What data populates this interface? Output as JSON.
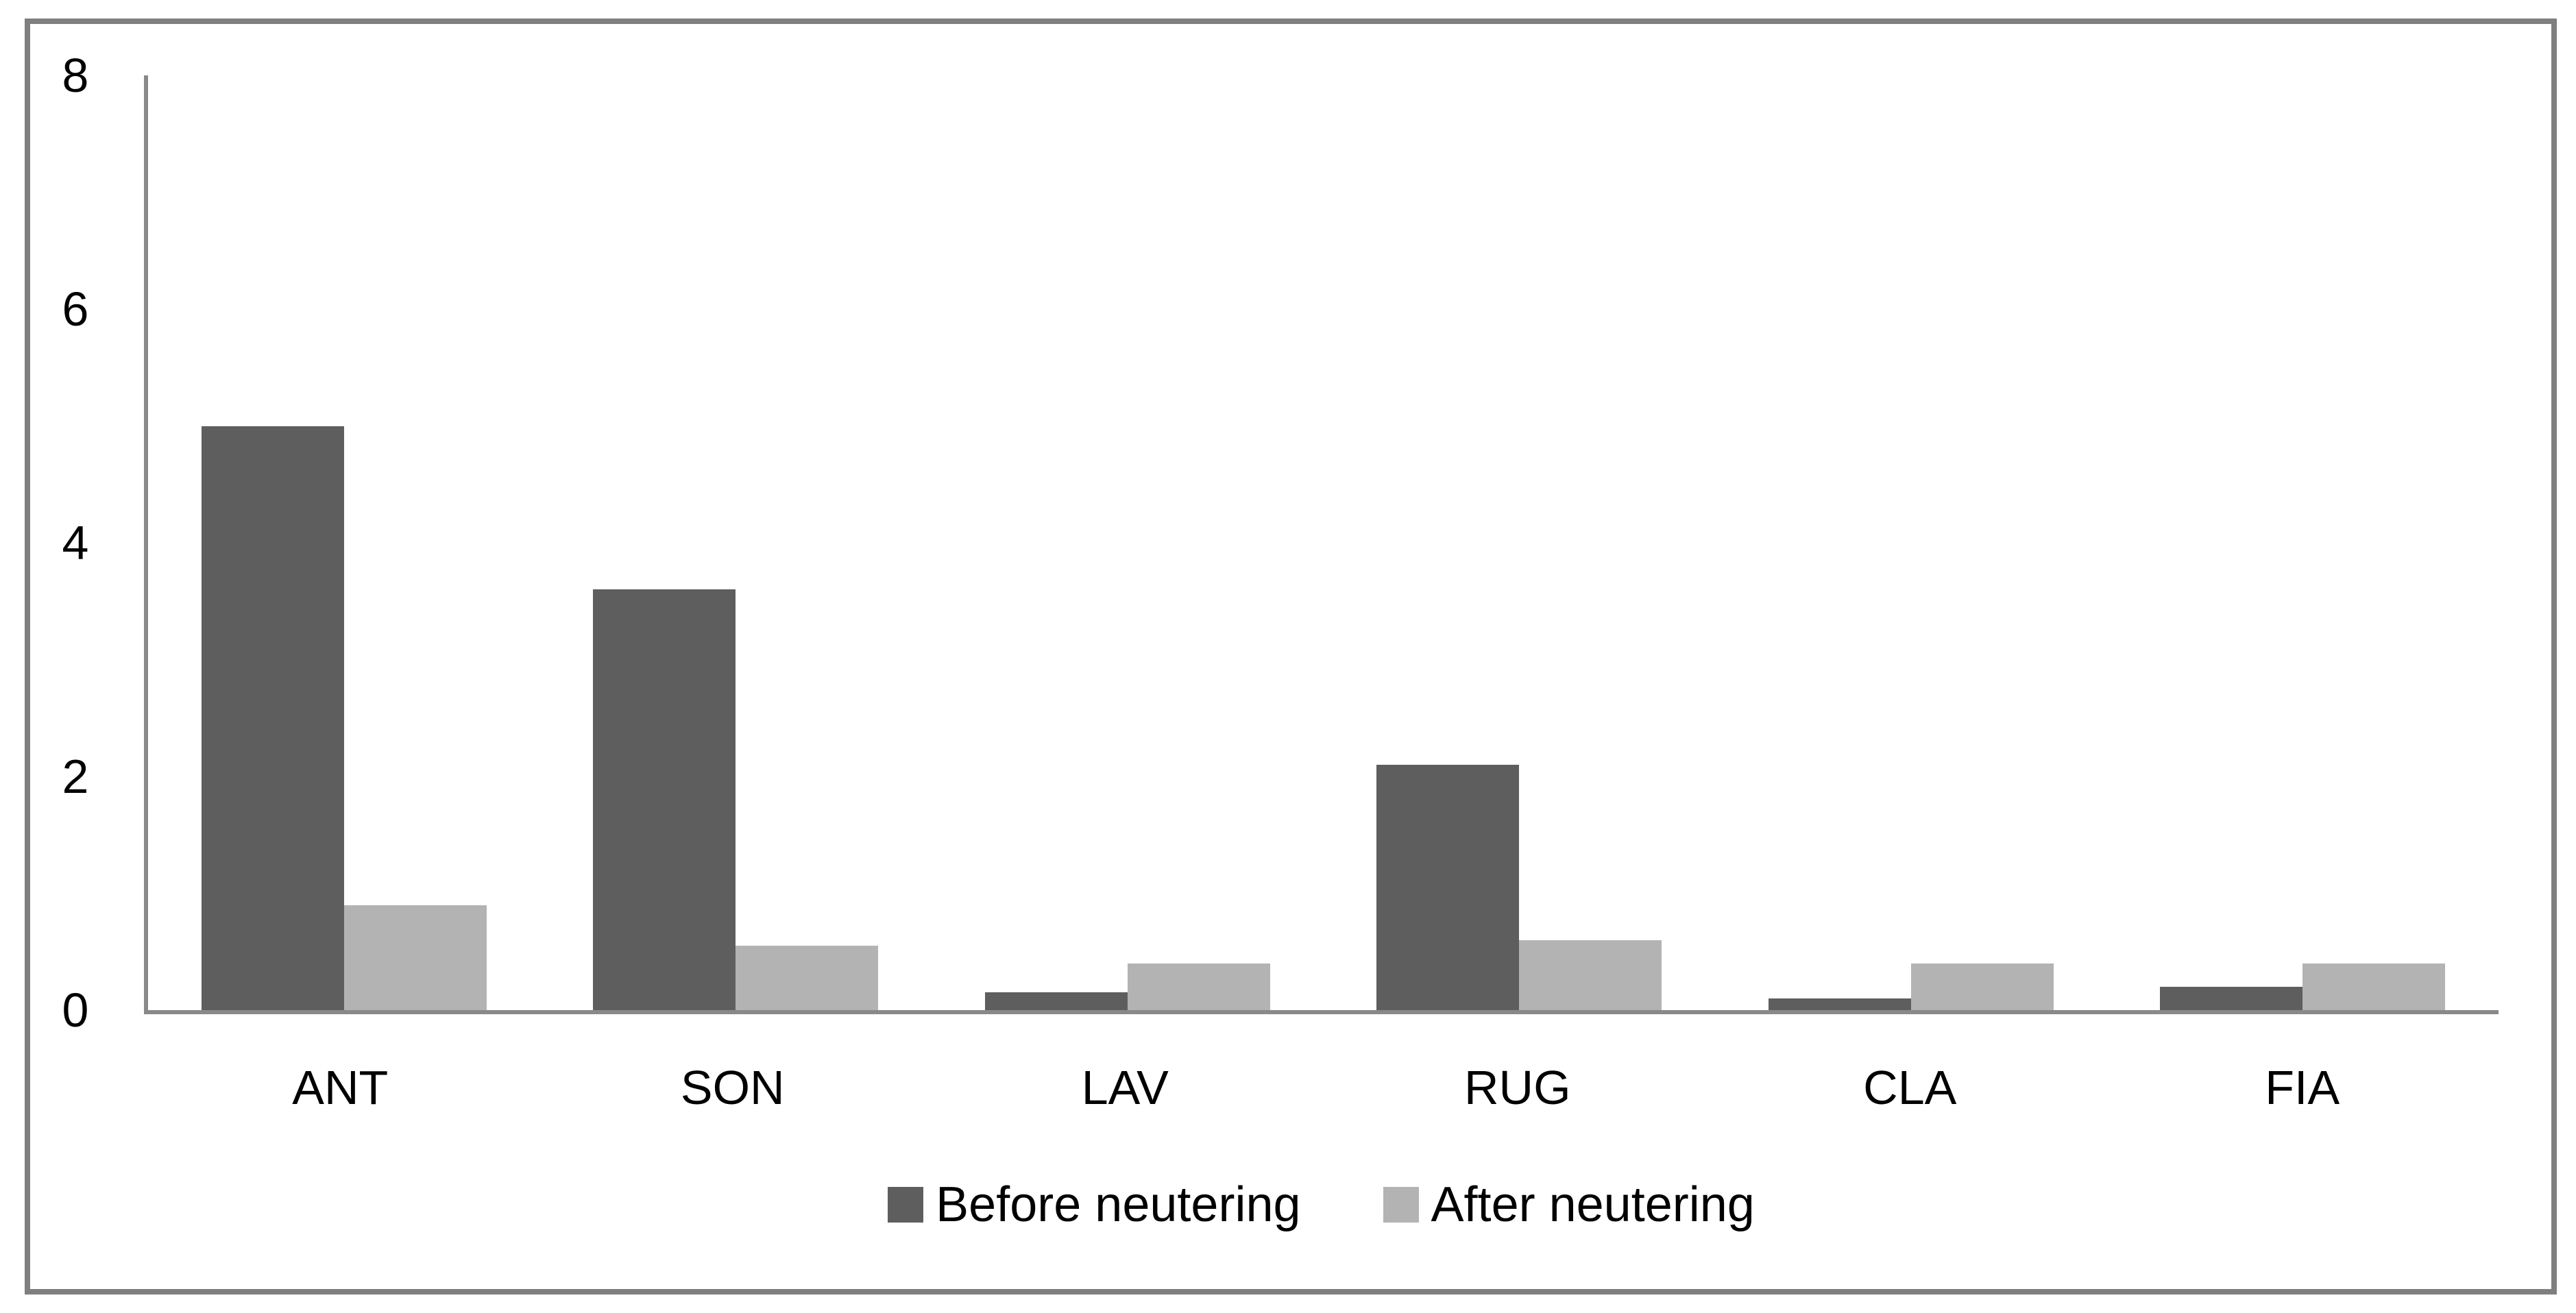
{
  "chart_data": {
    "type": "bar",
    "title": "",
    "xlabel": "",
    "ylabel": "",
    "categories": [
      "ANT",
      "SON",
      "LAV",
      "RUG",
      "CLA",
      "FIA"
    ],
    "series": [
      {
        "name": "Before neutering",
        "color": "#5e5e5e",
        "values": [
          5.0,
          3.6,
          0.15,
          2.1,
          0.1,
          0.2
        ]
      },
      {
        "name": "After neutering",
        "color": "#b3b3b3",
        "values": [
          0.9,
          0.55,
          0.4,
          0.6,
          0.4,
          0.4
        ]
      }
    ],
    "ylim": [
      0,
      8
    ],
    "yticks": [
      0,
      2,
      4,
      6,
      8
    ],
    "grid": false,
    "legend_position": "bottom"
  },
  "frame": {
    "background": "#ffffff",
    "border_color": "#7f7f7f",
    "axis_color": "#898989",
    "text_color": "#000000"
  }
}
